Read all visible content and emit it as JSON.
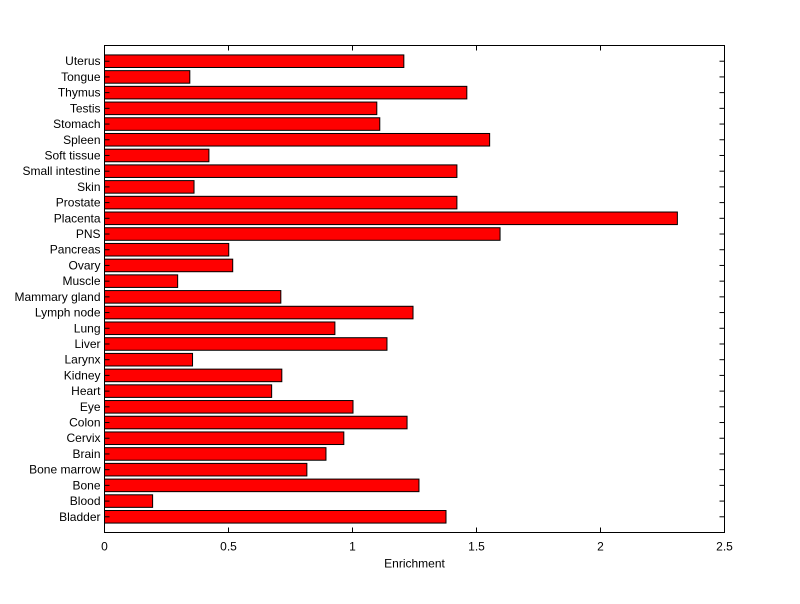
{
  "chart_data": {
    "type": "bar",
    "orientation": "horizontal",
    "title": "",
    "xlabel": "Enrichment",
    "ylabel": "",
    "xlim": [
      0,
      2.5
    ],
    "xticks": [
      0,
      0.5,
      1,
      1.5,
      2,
      2.5
    ],
    "xtick_labels": [
      "0",
      "0.5",
      "1",
      "1.5",
      "2",
      "2.5"
    ],
    "grid": false,
    "bar_color": "#ff0000",
    "edge_color": "#000000",
    "categories": [
      "Bladder",
      "Blood",
      "Bone",
      "Bone marrow",
      "Brain",
      "Cervix",
      "Colon",
      "Eye",
      "Heart",
      "Kidney",
      "Larynx",
      "Liver",
      "Lung",
      "Lymph node",
      "Mammary gland",
      "Muscle",
      "Ovary",
      "Pancreas",
      "PNS",
      "Placenta",
      "Prostate",
      "Skin",
      "Small intestine",
      "Soft tissue",
      "Spleen",
      "Stomach",
      "Testis",
      "Thymus",
      "Tongue",
      "Uterus"
    ],
    "values": [
      1.377,
      0.194,
      1.268,
      0.816,
      0.893,
      0.965,
      1.22,
      1.002,
      0.674,
      0.715,
      0.355,
      1.139,
      0.929,
      1.244,
      0.711,
      0.295,
      0.517,
      0.501,
      1.595,
      2.31,
      1.421,
      0.361,
      1.421,
      0.421,
      1.553,
      1.11,
      1.098,
      1.461,
      0.344,
      1.207
    ]
  }
}
